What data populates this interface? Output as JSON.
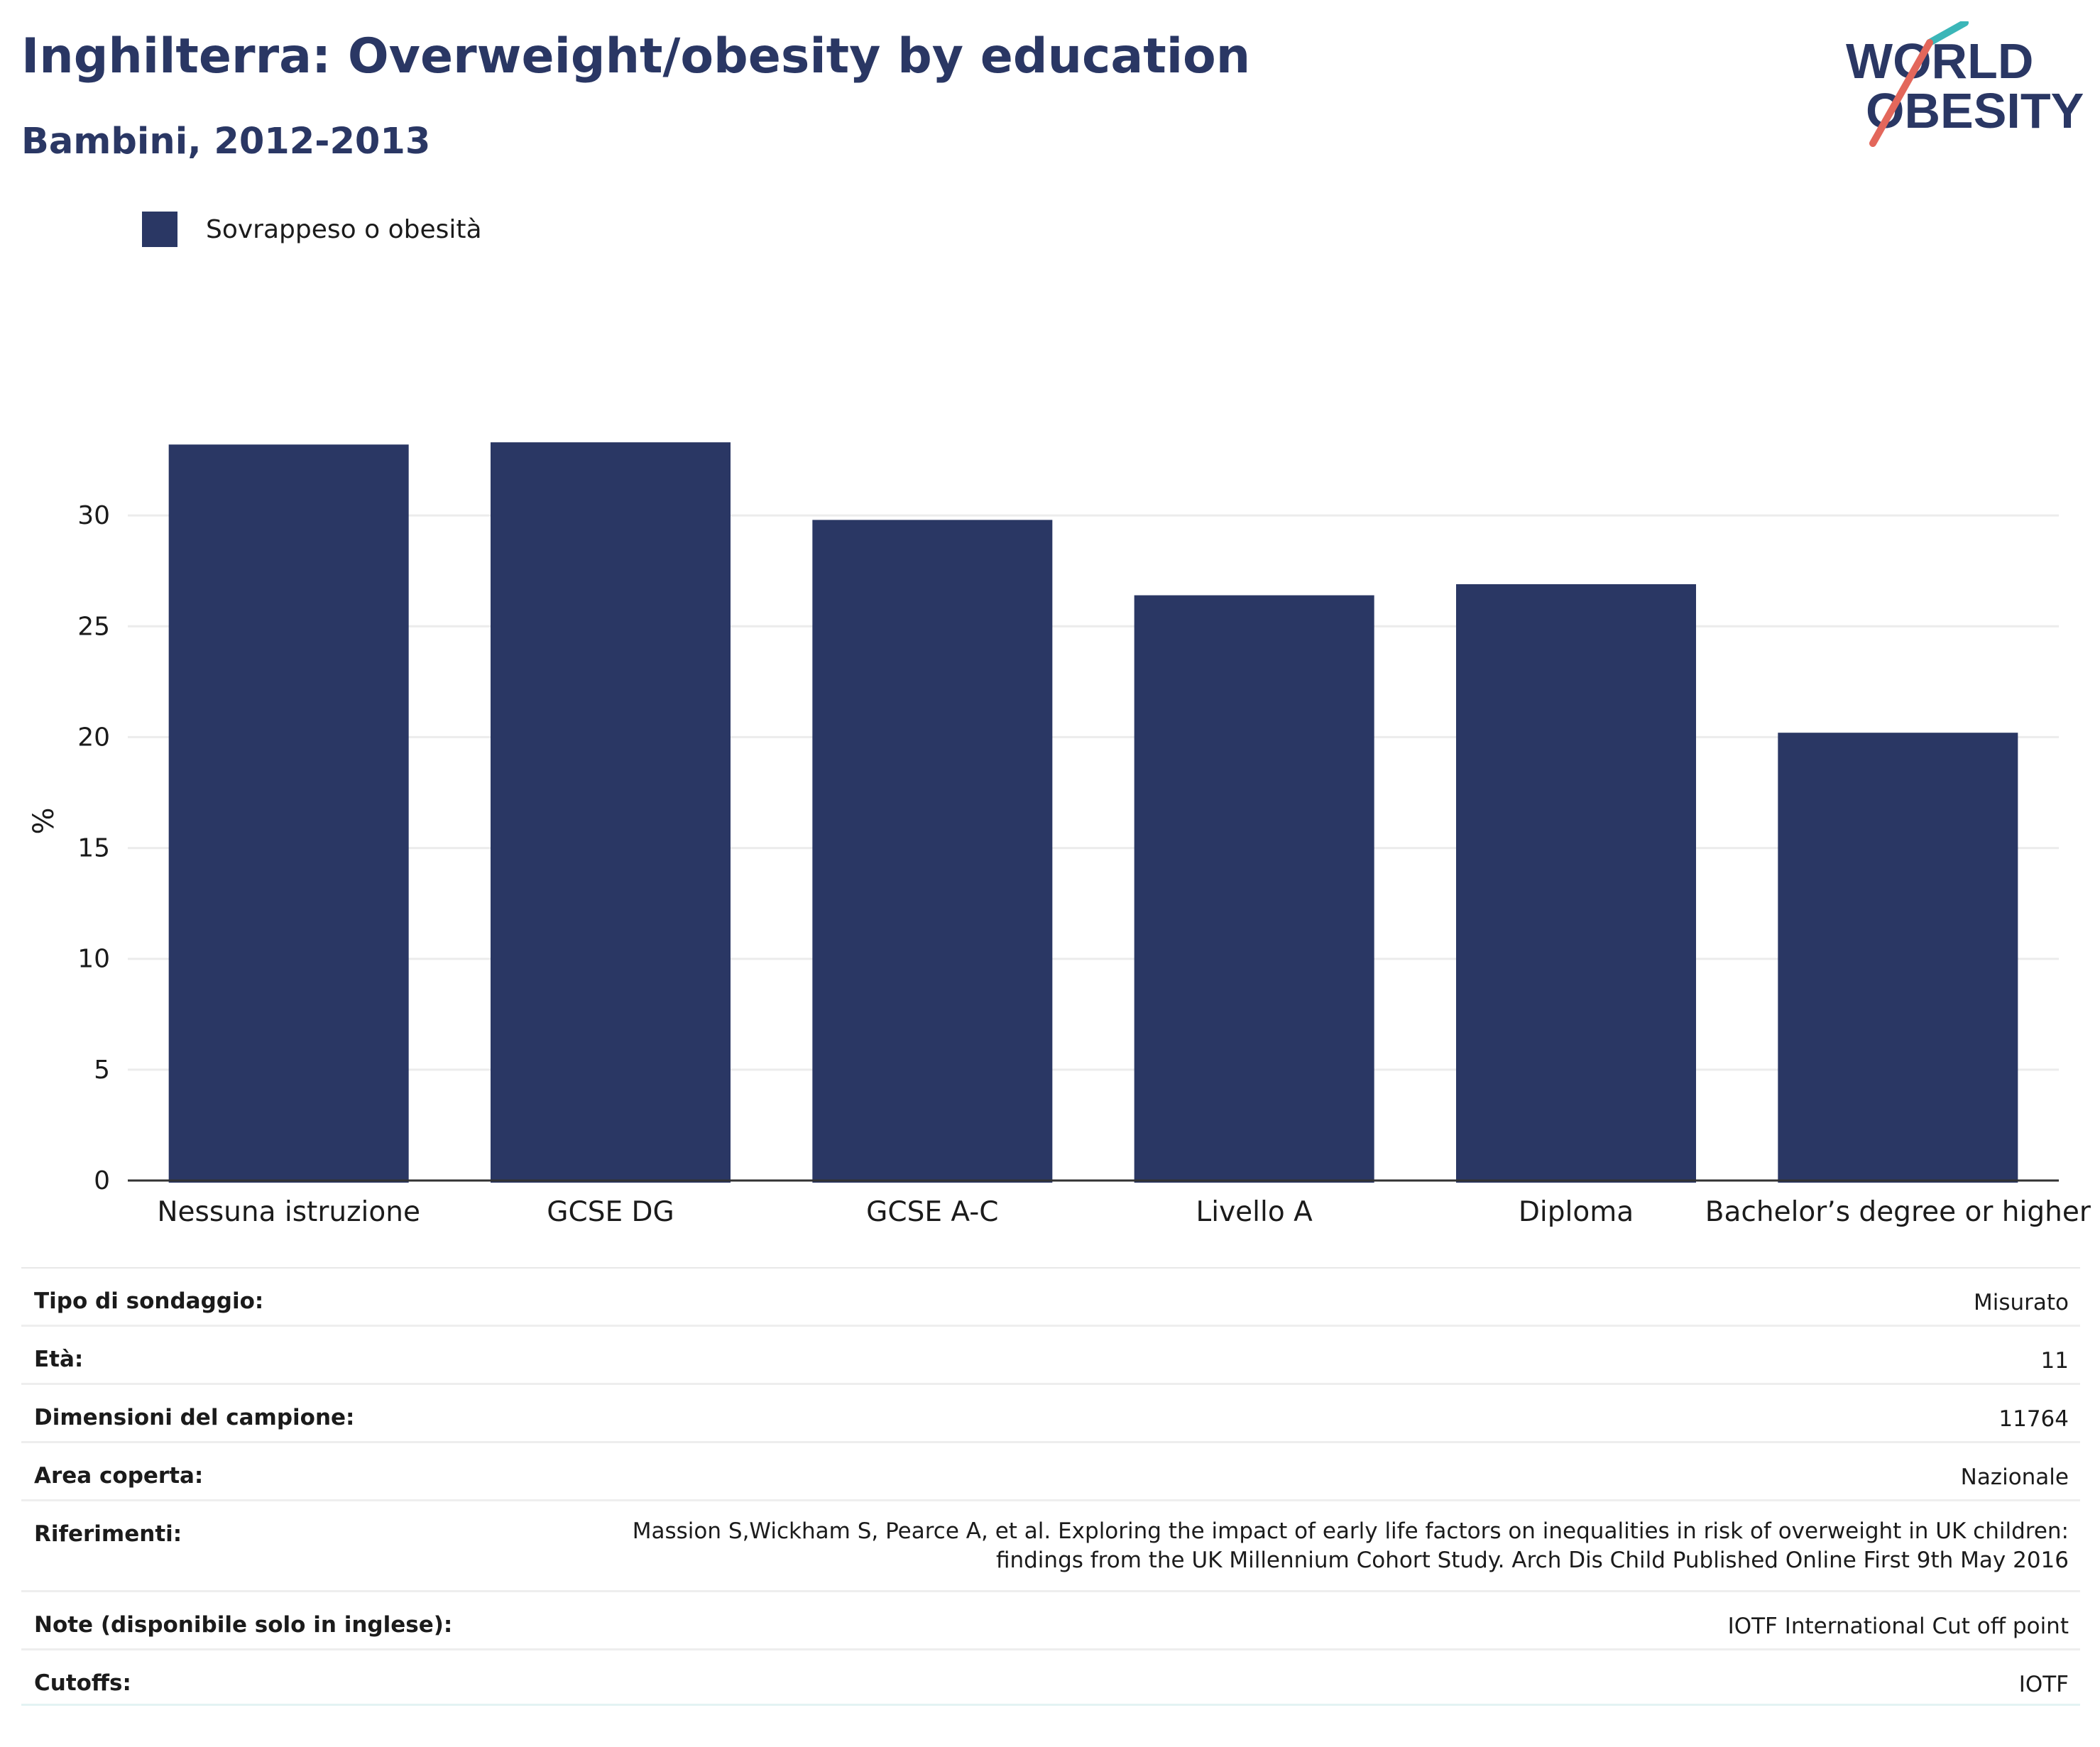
{
  "header": {
    "title": "Inghilterra: Overweight/obesity by education",
    "subtitle": "Bambini, 2012-2013"
  },
  "logo": {
    "line1": "WORLD",
    "line2": "OBESITY",
    "colors": {
      "text": "#2a3764",
      "slash_top": "#3bb6b8",
      "slash_bottom": "#e3675b"
    }
  },
  "legend": {
    "items": [
      {
        "label": "Sovrappeso o obesità",
        "color": "#2a3764"
      }
    ]
  },
  "chart_data": {
    "type": "bar",
    "categories": [
      "Nessuna istruzione",
      "GCSE DG",
      "GCSE A-C",
      "Livello A",
      "Diploma",
      "Bachelor’s degree or higher"
    ],
    "series": [
      {
        "name": "Sovrappeso o obesità",
        "values": [
          33.2,
          33.3,
          29.8,
          26.4,
          26.9,
          20.2
        ],
        "color": "#2a3764"
      }
    ],
    "ylabel": "%",
    "ylim": [
      0,
      35
    ],
    "yticks": [
      0,
      5,
      10,
      15,
      20,
      25,
      30
    ],
    "grid": true
  },
  "info": {
    "rows": [
      {
        "key": "Tipo di sondaggio:",
        "value": "Misurato"
      },
      {
        "key": "Età:",
        "value": "11"
      },
      {
        "key": "Dimensioni del campione:",
        "value": "11764"
      },
      {
        "key": "Area coperta:",
        "value": "Nazionale"
      },
      {
        "key": "Riferimenti:",
        "value": "Massion S,Wickham S, Pearce A, et al. Exploring the impact of early life factors on inequalities in risk of overweight in UK children: findings from the UK Millennium Cohort Study. Arch Dis Child Published Online First 9th May 2016"
      },
      {
        "key": "Note (disponibile solo in inglese):",
        "value": "IOTF International Cut off point"
      },
      {
        "key": "Cutoffs:",
        "value": "IOTF"
      }
    ]
  }
}
